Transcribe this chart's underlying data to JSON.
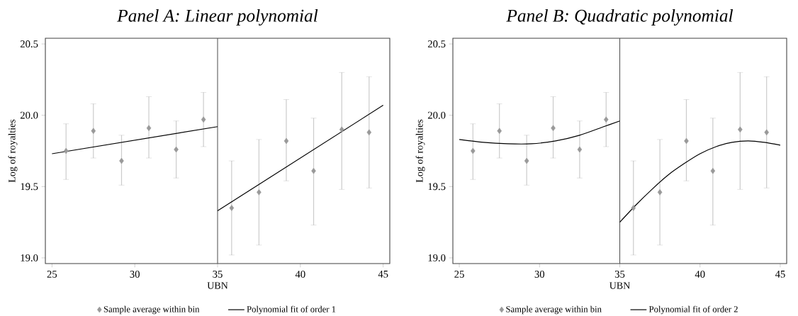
{
  "chart_data": [
    {
      "type": "scatter",
      "title": "Panel A: Linear polynomial",
      "xlabel": "UBN",
      "ylabel": "Log of royalties",
      "xlim": [
        24.6,
        45.4
      ],
      "ylim": [
        18.96,
        20.54
      ],
      "xticks": [
        25,
        30,
        35,
        40,
        45
      ],
      "yticks": [
        {
          "value": 19,
          "label": "19.0"
        },
        {
          "value": 19.5,
          "label": "19.5"
        },
        {
          "value": 20,
          "label": "20.0"
        },
        {
          "value": 20.5,
          "label": "20.5"
        }
      ],
      "legend": "bottom",
      "ref_lines": [
        {
          "axis": "x",
          "value": 35,
          "color": "#555555"
        }
      ],
      "series": [
        {
          "name": "Sample average within bin",
          "color": "#999999",
          "marker": "diamond",
          "x": [
            25.85,
            27.5,
            29.2,
            30.85,
            32.5,
            34.15,
            35.85,
            37.5,
            39.15,
            40.8,
            42.5,
            44.15
          ],
          "values": [
            19.75,
            19.89,
            19.68,
            19.91,
            19.76,
            19.97,
            19.35,
            19.46,
            19.82,
            19.61,
            19.9,
            19.88
          ],
          "errors": [
            [
              19.55,
              19.94
            ],
            [
              19.7,
              20.08
            ],
            [
              19.51,
              19.86
            ],
            [
              19.7,
              20.13
            ],
            [
              19.56,
              19.96
            ],
            [
              19.78,
              20.16
            ],
            [
              19.02,
              19.68
            ],
            [
              19.09,
              19.83
            ],
            [
              19.54,
              20.11
            ],
            [
              19.23,
              19.98
            ],
            [
              19.48,
              20.3
            ],
            [
              19.49,
              20.27
            ]
          ]
        },
        {
          "type": "line",
          "name": "Polynomial fit of order 1",
          "color": "#000000",
          "x": [
            25,
            35
          ],
          "values": [
            19.73,
            19.92
          ]
        },
        {
          "type": "line",
          "color": "#000000",
          "x": [
            35,
            45
          ],
          "values": [
            19.33,
            20.07
          ]
        }
      ]
    },
    {
      "type": "scatter",
      "title": "Panel B: Quadratic polynomial",
      "xlabel": "UBN",
      "ylabel": "Log of royalties",
      "xlim": [
        24.6,
        45.4
      ],
      "ylim": [
        18.96,
        20.54
      ],
      "xticks": [
        25,
        30,
        35,
        40,
        45
      ],
      "yticks": [
        {
          "value": 19,
          "label": "19.0"
        },
        {
          "value": 19.5,
          "label": "19.5"
        },
        {
          "value": 20,
          "label": "20.0"
        },
        {
          "value": 20.5,
          "label": "20.5"
        }
      ],
      "legend": "bottom",
      "ref_lines": [
        {
          "axis": "x",
          "value": 35,
          "color": "#555555"
        }
      ],
      "series": [
        {
          "name": "Sample average within bin",
          "color": "#999999",
          "marker": "diamond",
          "x": [
            25.85,
            27.5,
            29.2,
            30.85,
            32.5,
            34.15,
            35.85,
            37.5,
            39.15,
            40.8,
            42.5,
            44.15
          ],
          "values": [
            19.75,
            19.89,
            19.68,
            19.91,
            19.76,
            19.97,
            19.35,
            19.46,
            19.82,
            19.61,
            19.9,
            19.88
          ],
          "errors": [
            [
              19.55,
              19.94
            ],
            [
              19.7,
              20.08
            ],
            [
              19.51,
              19.86
            ],
            [
              19.7,
              20.13
            ],
            [
              19.56,
              19.96
            ],
            [
              19.78,
              20.16
            ],
            [
              19.02,
              19.68
            ],
            [
              19.09,
              19.83
            ],
            [
              19.54,
              20.11
            ],
            [
              19.23,
              19.98
            ],
            [
              19.48,
              20.3
            ],
            [
              19.49,
              20.27
            ]
          ]
        },
        {
          "type": "line",
          "name": "Polynomial fit of order 2",
          "color": "#000000",
          "x": [
            25,
            26.5,
            28,
            29.5,
            31,
            32.5,
            34,
            35
          ],
          "values": [
            19.83,
            19.81,
            19.8,
            19.8,
            19.82,
            19.86,
            19.92,
            19.96
          ]
        },
        {
          "type": "line",
          "color": "#000000",
          "x": [
            35,
            36,
            37,
            38,
            39,
            40,
            41,
            42,
            43,
            44,
            45
          ],
          "values": [
            19.25,
            19.37,
            19.48,
            19.58,
            19.66,
            19.73,
            19.78,
            19.81,
            19.82,
            19.81,
            19.79
          ]
        }
      ]
    }
  ]
}
